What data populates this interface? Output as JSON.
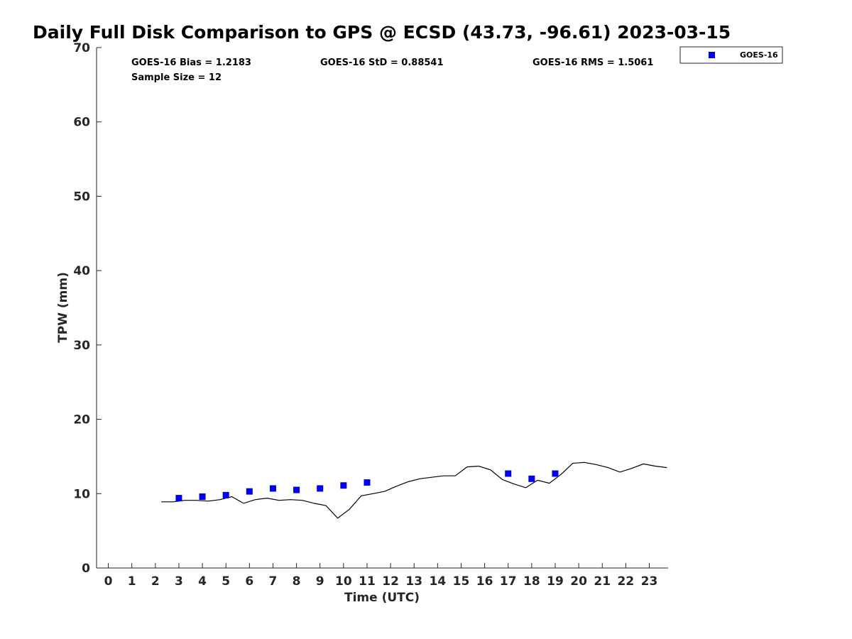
{
  "chart_data": {
    "type": "scatter",
    "title": "Daily Full Disk Comparison to GPS @ ECSD (43.73, -96.61) 2023-03-15",
    "xlabel": "Time (UTC)",
    "ylabel": "TPW (mm)",
    "xlim": [
      -0.5,
      23.8
    ],
    "ylim": [
      0,
      70
    ],
    "x_ticks": [
      0,
      1,
      2,
      3,
      4,
      5,
      6,
      7,
      8,
      9,
      10,
      11,
      12,
      13,
      14,
      15,
      16,
      17,
      18,
      19,
      20,
      21,
      22,
      23
    ],
    "y_ticks": [
      0,
      10,
      20,
      30,
      40,
      50,
      60,
      70
    ],
    "grid": false,
    "legend_position": "top-right, outside plot area",
    "stats": {
      "bias": "GOES-16 Bias = 1.2183",
      "std": "GOES-16 StD = 0.88541",
      "rms": "GOES-16 RMS = 1.5061",
      "sample": "Sample Size = 12"
    },
    "series": [
      {
        "name": "GOES-16",
        "kind": "markers",
        "marker": "square",
        "color": "#0000ee",
        "x": [
          3,
          4,
          5,
          6,
          7,
          8,
          9,
          10,
          11,
          17,
          18,
          19
        ],
        "y": [
          9.4,
          9.6,
          9.8,
          10.3,
          10.7,
          10.5,
          10.7,
          11.1,
          11.5,
          12.7,
          12.0,
          12.7
        ]
      },
      {
        "kind": "line",
        "color": "#000000",
        "x": [
          2.25,
          2.75,
          3.25,
          3.75,
          4.25,
          4.75,
          5.25,
          5.75,
          6.25,
          6.75,
          7.25,
          7.75,
          8.25,
          8.75,
          9.25,
          9.75,
          10.25,
          10.75,
          11.25,
          11.75,
          12.25,
          12.75,
          13.25,
          13.75,
          14.25,
          14.75,
          15.25,
          15.75,
          16.25,
          16.75,
          17.25,
          17.75,
          18.25,
          18.75,
          19.25,
          19.75,
          20.25,
          20.75,
          21.25,
          21.75,
          22.25,
          22.75,
          23.25,
          23.75
        ],
        "y": [
          8.9,
          8.9,
          9.1,
          9.1,
          9.0,
          9.2,
          9.6,
          8.7,
          9.2,
          9.4,
          9.1,
          9.2,
          9.1,
          8.7,
          8.4,
          6.7,
          7.9,
          9.7,
          10.0,
          10.3,
          11.0,
          11.6,
          12.0,
          12.2,
          12.4,
          12.4,
          13.6,
          13.7,
          13.2,
          11.9,
          11.3,
          10.8,
          11.8,
          11.4,
          12.6,
          14.1,
          14.2,
          13.9,
          13.5,
          12.9,
          13.4,
          14.0,
          13.7,
          13.5
        ]
      }
    ]
  }
}
